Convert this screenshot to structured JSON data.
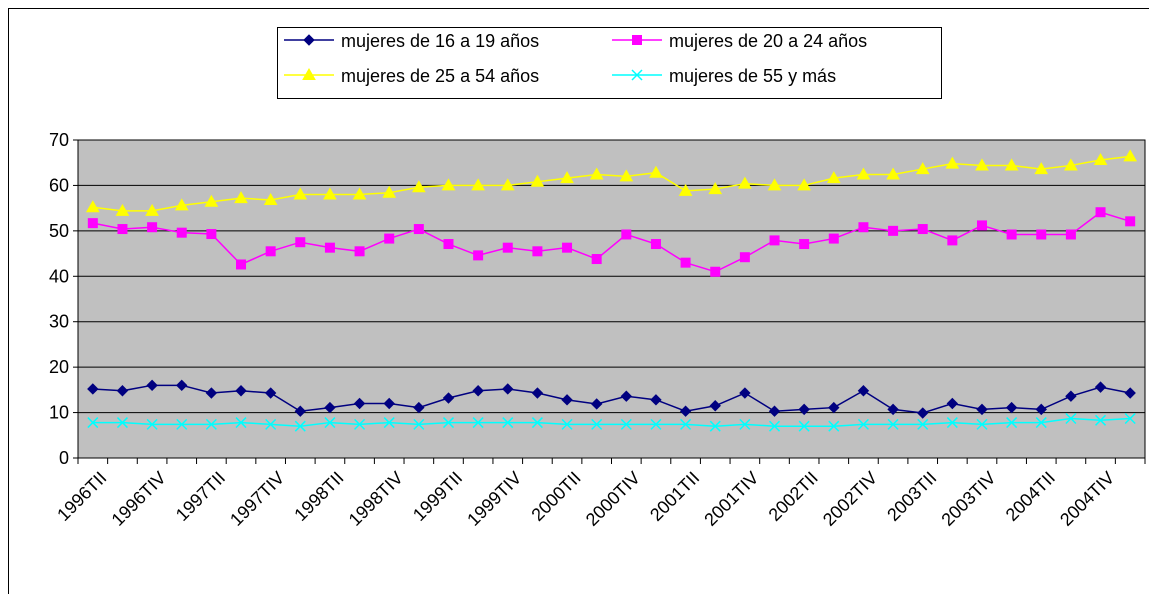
{
  "chart_data": {
    "type": "line",
    "categories": [
      "1996TII",
      null,
      "1996TIV",
      null,
      "1997TII",
      null,
      "1997TIV",
      null,
      "1998TII",
      null,
      "1998TIV",
      null,
      "1999TII",
      null,
      "1999TIV",
      null,
      "2000TII",
      null,
      "2000TIV",
      null,
      "2001TII",
      null,
      "2001TIV",
      null,
      "2002TII",
      null,
      "2002TIV",
      null,
      "2003TII",
      null,
      "2003TIV",
      null,
      "2004TII",
      null,
      "2004TIV",
      null
    ],
    "series": [
      {
        "name": "mujeres de 16 a 19 años",
        "color": "#000080",
        "marker": "diamond",
        "values": [
          15.2,
          14.8,
          16,
          16,
          14.3,
          14.8,
          14.3,
          10.3,
          11.1,
          12,
          12,
          11.1,
          13.2,
          14.8,
          15.2,
          14.3,
          12.8,
          11.9,
          13.6,
          12.8,
          10.3,
          11.5,
          14.3,
          10.3,
          10.7,
          11.1,
          14.8,
          10.7,
          9.9,
          12,
          10.7,
          11.1,
          10.7,
          13.6,
          15.6,
          14.3
        ]
      },
      {
        "name": "mujeres de 20 a 24 años",
        "color": "#FF00FF",
        "marker": "square",
        "values": [
          51.7,
          50.4,
          50.8,
          49.6,
          49.3,
          42.6,
          45.5,
          47.5,
          46.3,
          45.5,
          48.3,
          50.4,
          47.1,
          44.6,
          46.3,
          45.5,
          46.3,
          43.8,
          49.2,
          47.1,
          43.0,
          41.0,
          44.2,
          47.9,
          47.1,
          48.3,
          50.8,
          50.0,
          50.4,
          47.9,
          51.2,
          49.2,
          49.2,
          49.2,
          54.1,
          52.1
        ]
      },
      {
        "name": "mujeres de 25 a 54 años",
        "color": "#FFFF00",
        "marker": "triangle",
        "values": [
          55.2,
          54.4,
          54.4,
          55.6,
          56.4,
          57.2,
          56.8,
          58.0,
          58.0,
          58.0,
          58.4,
          59.6,
          60.0,
          60.0,
          60.0,
          60.8,
          61.6,
          62.4,
          62.0,
          62.8,
          58.8,
          59.2,
          60.4,
          60.0,
          60.0,
          61.6,
          62.4,
          62.4,
          63.6,
          64.8,
          64.4,
          64.4,
          63.6,
          64.4,
          65.6,
          66.4
        ]
      },
      {
        "name": "mujeres de 55 y más",
        "color": "#00FFFF",
        "marker": "x",
        "values": [
          7.8,
          7.8,
          7.4,
          7.4,
          7.4,
          7.8,
          7.4,
          7.0,
          7.8,
          7.4,
          7.8,
          7.4,
          7.8,
          7.8,
          7.8,
          7.8,
          7.4,
          7.4,
          7.4,
          7.4,
          7.4,
          7.0,
          7.4,
          7.0,
          7.0,
          7.0,
          7.4,
          7.4,
          7.4,
          7.8,
          7.4,
          7.8,
          7.8,
          8.7,
          8.3,
          8.7
        ]
      }
    ],
    "ylim": [
      0,
      70
    ],
    "yticks": [
      0,
      10,
      20,
      30,
      40,
      50,
      60,
      70
    ],
    "grid": true,
    "legend": "top",
    "plot_background": "#C0C0C0"
  }
}
